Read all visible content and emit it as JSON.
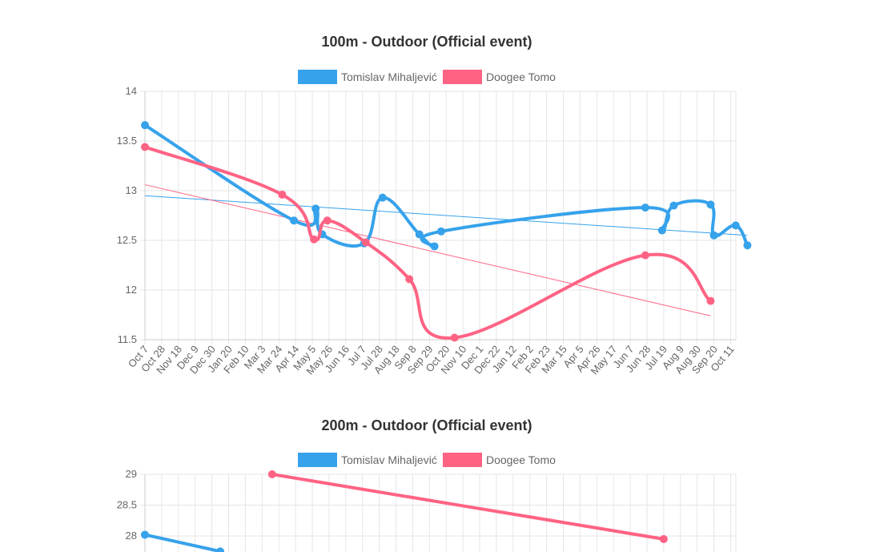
{
  "chart_data": [
    {
      "type": "line",
      "title": "100m - Outdoor (Official event)",
      "legend": [
        {
          "name": "Tomislav Mihaljević",
          "color": "#36a2eb"
        },
        {
          "name": "Doogee Tomo",
          "color": "#ff6384"
        }
      ],
      "y_ticks": [
        "14",
        "13.5",
        "13",
        "12.5",
        "12",
        "11.5"
      ],
      "ylim": [
        11.5,
        14
      ],
      "x_ticks": [
        "Oct 7",
        "Oct 28",
        "Nov 18",
        "Dec 9",
        "Dec 30",
        "Jan 20",
        "Feb 10",
        "Mar 3",
        "Mar 24",
        "Apr 14",
        "May 5",
        "May 26",
        "Jun 16",
        "Jul 7",
        "Jul 28",
        "Aug 18",
        "Sep 8",
        "Sep 29",
        "Oct 20",
        "Nov 10",
        "Dec 1",
        "Dec 22",
        "Jan 12",
        "Feb 2",
        "Feb 23",
        "Mar 15",
        "Apr 5",
        "Apr 26",
        "May 17",
        "Jun 7",
        "Jun 28",
        "Jul 19",
        "Aug 9",
        "Aug 30",
        "Sep 20",
        "Oct 11"
      ],
      "series": [
        {
          "name": "Tomislav Mihaljević",
          "color": "#36a2eb",
          "points": [
            [
              0,
              13.66
            ],
            [
              8.9,
              12.7
            ],
            [
              10.2,
              12.82
            ],
            [
              10.6,
              12.56
            ],
            [
              13.1,
              12.47
            ],
            [
              14.2,
              12.93
            ],
            [
              16.4,
              12.56
            ],
            [
              17.3,
              12.44
            ],
            [
              17.7,
              12.59
            ],
            [
              29.9,
              12.83
            ],
            [
              30.9,
              12.6
            ],
            [
              31.6,
              12.85
            ],
            [
              33.8,
              12.86
            ],
            [
              34.0,
              12.55
            ],
            [
              35.3,
              12.65
            ],
            [
              36.0,
              12.45
            ]
          ]
        },
        {
          "name": "Doogee Tomo",
          "color": "#ff6384",
          "points": [
            [
              0,
              13.44
            ],
            [
              8.2,
              12.96
            ],
            [
              10.1,
              12.51
            ],
            [
              10.9,
              12.7
            ],
            [
              13.2,
              12.48
            ],
            [
              15.8,
              12.11
            ],
            [
              18.5,
              11.52
            ],
            [
              29.9,
              12.35
            ],
            [
              33.8,
              11.89
            ]
          ]
        }
      ],
      "trendlines": [
        {
          "name": "Tomislav Mihaljević trend",
          "color": "#36a2eb",
          "from": [
            0,
            12.95
          ],
          "to": [
            36.0,
            12.55
          ]
        },
        {
          "name": "Doogee Tomo trend",
          "color": "#ff6384",
          "from": [
            0,
            13.06
          ],
          "to": [
            33.8,
            11.74
          ]
        }
      ]
    },
    {
      "type": "line",
      "title": "200m - Outdoor (Official event)",
      "legend": [
        {
          "name": "Tomislav Mihaljević",
          "color": "#36a2eb"
        },
        {
          "name": "Doogee Tomo",
          "color": "#ff6384"
        }
      ],
      "y_ticks": [
        "29",
        "28.5",
        "28"
      ],
      "ylim": [
        27.5,
        29
      ],
      "x_tick_count": 36,
      "series": [
        {
          "name": "Tomislav Mihaljević",
          "color": "#36a2eb",
          "points": [
            [
              0,
              28.02
            ],
            [
              4.5,
              27.75
            ]
          ]
        },
        {
          "name": "Doogee Tomo",
          "color": "#ff6384",
          "points": [
            [
              7.6,
              29.0
            ],
            [
              31.0,
              27.95
            ]
          ]
        }
      ]
    }
  ]
}
